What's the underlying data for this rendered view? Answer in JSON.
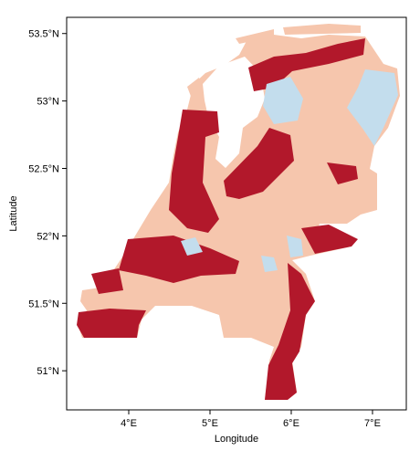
{
  "chart_data": {
    "type": "map",
    "xlabel": "Longitude",
    "ylabel": "Latitude",
    "xlim": [
      3.236,
      7.416
    ],
    "ylim": [
      50.71,
      53.62
    ],
    "xticks": [
      {
        "value": 4,
        "label": "4°E"
      },
      {
        "value": 5,
        "label": "5°E"
      },
      {
        "value": 6,
        "label": "6°E"
      },
      {
        "value": 7,
        "label": "7°E"
      }
    ],
    "yticks": [
      {
        "value": 51,
        "label": "51°N"
      },
      {
        "value": 51.5,
        "label": "51.5°N"
      },
      {
        "value": 52,
        "label": "52°N"
      },
      {
        "value": 52.5,
        "label": "52.5°N"
      },
      {
        "value": 53,
        "label": "53°N"
      },
      {
        "value": 53.5,
        "label": "53.5°N"
      }
    ]
  }
}
